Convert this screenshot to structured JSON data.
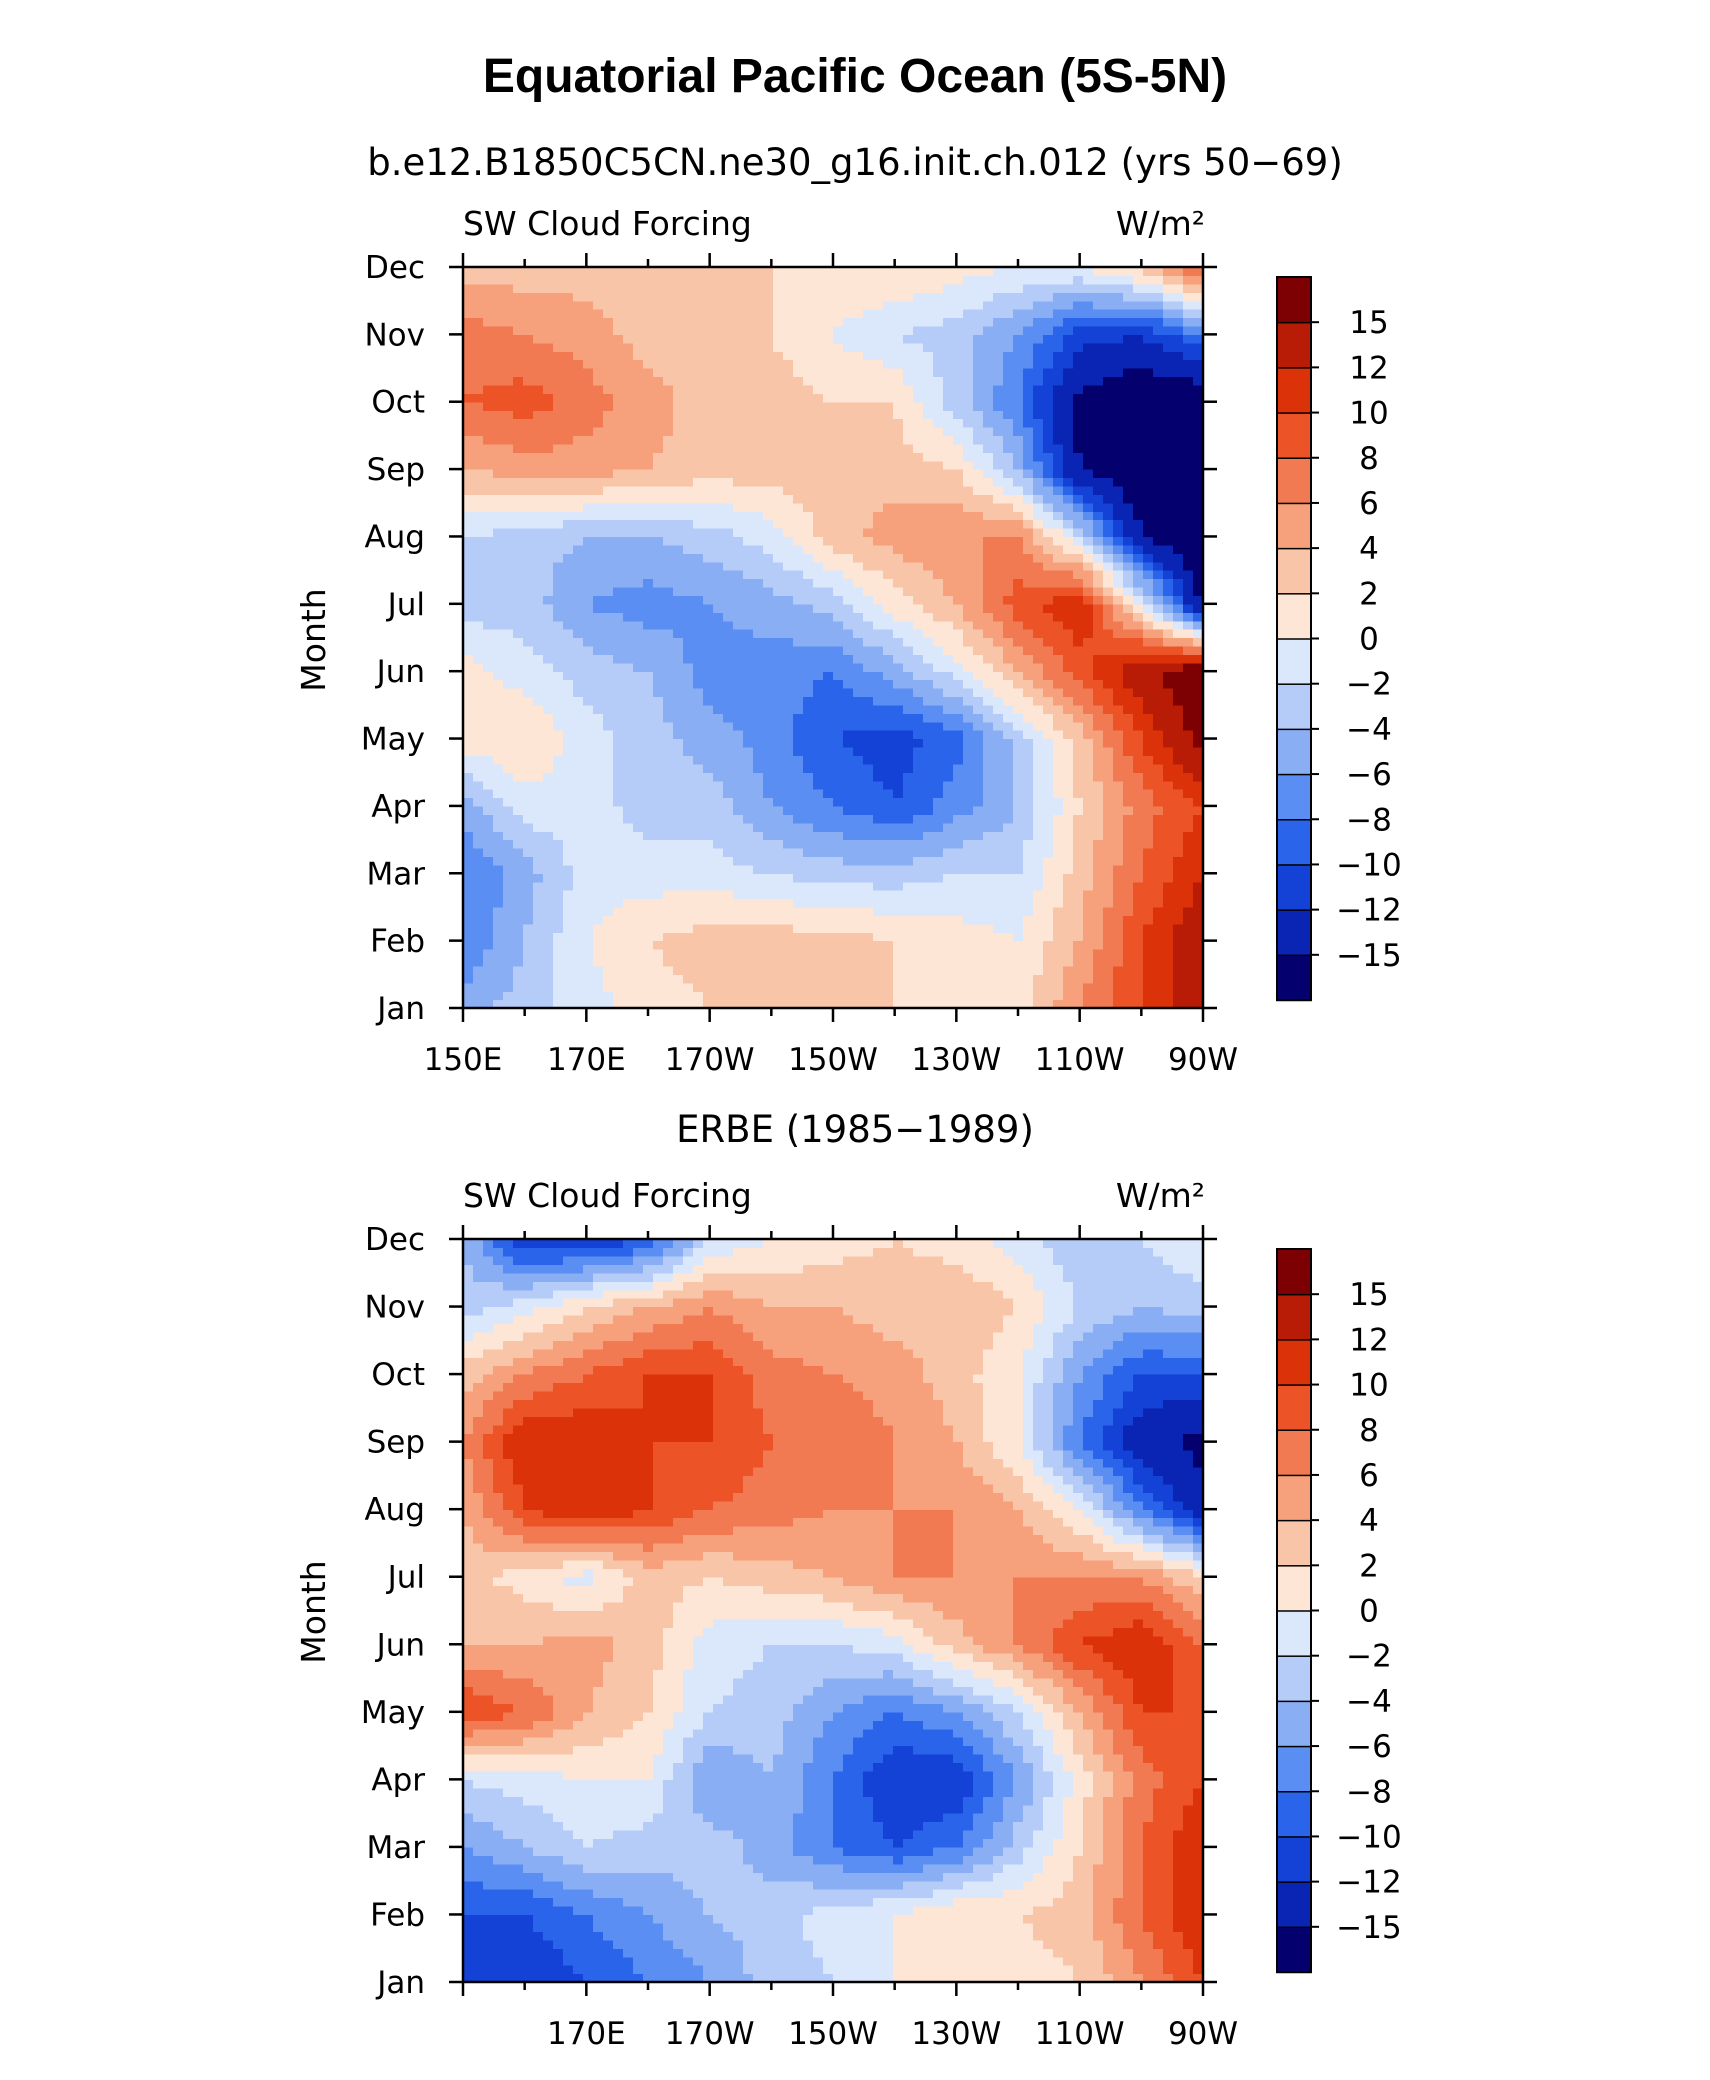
{
  "title": "Equatorial Pacific Ocean (5S-5N)",
  "colors": {
    "scale": [
      "#04006e",
      "#0a24b4",
      "#1441d6",
      "#2a64ea",
      "#5a8ef2",
      "#8aaef4",
      "#b5ccf8",
      "#dbe7fb",
      "#fde6d6",
      "#f9c5a8",
      "#f6a07c",
      "#f27a52",
      "#ec5327",
      "#dc3209",
      "#b81c06",
      "#7d0002"
    ]
  },
  "chart_data": [
    {
      "type": "heatmap",
      "subtitle": "b.e12.B1850C5CN.ne30_g16.init.ch.012 (yrs 50−69)",
      "left_label": "SW Cloud Forcing",
      "right_label": "W/m²",
      "ylabel": "Month",
      "xlabel": "",
      "x_ticks": [
        "150E",
        "170E",
        "170W",
        "150W",
        "130W",
        "110W",
        "90W"
      ],
      "y_ticks": [
        "Jan",
        "Feb",
        "Mar",
        "Apr",
        "May",
        "Jun",
        "Jul",
        "Aug",
        "Sep",
        "Oct",
        "Nov",
        "Dec"
      ],
      "xlim": [
        150,
        270
      ],
      "colorbar_labels": [
        "15",
        "12",
        "10",
        "8",
        "6",
        "4",
        "2",
        "0",
        "−2",
        "−4",
        "−6",
        "−8",
        "−10",
        "−12",
        "−15"
      ],
      "grid_x": [
        150,
        160,
        170,
        180,
        190,
        200,
        210,
        220,
        230,
        240,
        250,
        260,
        270
      ],
      "values": [
        [
          -5,
          -3,
          -1,
          1,
          2,
          2,
          2,
          2,
          1,
          1,
          6,
          10,
          14
        ],
        [
          -8,
          -4,
          0,
          2,
          3,
          3,
          3,
          2,
          1,
          0,
          4,
          10,
          14
        ],
        [
          -8,
          -5,
          -1,
          -1,
          -1,
          -2,
          -3,
          -3,
          -2,
          -2,
          3,
          8,
          12
        ],
        [
          -5,
          -1,
          -1,
          -3,
          -3,
          -6,
          -8,
          -10,
          -7,
          -4,
          2,
          7,
          10
        ],
        [
          1,
          2,
          -1,
          -3,
          -5,
          -7,
          -10,
          -11,
          -9,
          -3,
          3,
          10,
          16
        ],
        [
          1,
          -1,
          -3,
          -4,
          -7,
          -7,
          -8,
          -5,
          -1,
          4,
          9,
          14,
          18
        ],
        [
          -3,
          -3,
          -6,
          -7,
          -6,
          -5,
          -3,
          1,
          4,
          9,
          12,
          0,
          -16
        ],
        [
          -2,
          -3,
          -4,
          -4,
          -3,
          -1,
          3,
          5,
          6,
          6,
          -2,
          -15,
          -18
        ],
        [
          4,
          5,
          5,
          4,
          3,
          3,
          3,
          3,
          2,
          -4,
          -15,
          -18,
          -18
        ],
        [
          8,
          9,
          7,
          5,
          3,
          3,
          2,
          2,
          -3,
          -8,
          -16,
          -18,
          -18
        ],
        [
          7,
          6,
          5,
          3,
          2,
          2,
          0,
          -2,
          -3,
          -6,
          -11,
          -12,
          -8
        ],
        [
          3,
          3,
          3,
          3,
          3,
          2,
          2,
          2,
          1,
          0,
          0,
          3,
          9
        ]
      ]
    },
    {
      "type": "heatmap",
      "subtitle": "ERBE (1985−1989)",
      "left_label": "SW Cloud Forcing",
      "right_label": "W/m²",
      "ylabel": "Month",
      "xlabel": "",
      "x_ticks": [
        "170E",
        "170W",
        "150W",
        "130W",
        "110W",
        "90W"
      ],
      "y_ticks": [
        "Jan",
        "Feb",
        "Mar",
        "Apr",
        "May",
        "Jun",
        "Jul",
        "Aug",
        "Sep",
        "Oct",
        "Nov",
        "Dec"
      ],
      "xlim": [
        150,
        270
      ],
      "colorbar_labels": [
        "15",
        "12",
        "10",
        "8",
        "6",
        "4",
        "2",
        "0",
        "−2",
        "−4",
        "−6",
        "−8",
        "−10",
        "−12",
        "−15"
      ],
      "grid_x": [
        150,
        160,
        170,
        180,
        190,
        200,
        210,
        220,
        230,
        240,
        250,
        260,
        270
      ],
      "values": [
        [
          -10,
          -12,
          -10,
          -8,
          -6,
          -3,
          -2,
          0,
          1,
          1,
          2,
          6,
          10
        ],
        [
          -10,
          -10,
          -8,
          -6,
          -4,
          -3,
          -1,
          0,
          2,
          2,
          3,
          8,
          12
        ],
        [
          -6,
          -4,
          -2,
          -3,
          -3,
          -5,
          -8,
          -10,
          -8,
          -3,
          2,
          8,
          12
        ],
        [
          -2,
          -1,
          0,
          0,
          -6,
          -4,
          -8,
          -12,
          -12,
          -6,
          1,
          7,
          10
        ],
        [
          10,
          8,
          4,
          2,
          -2,
          -3,
          -6,
          -8,
          -6,
          -2,
          4,
          10,
          10
        ],
        [
          4,
          4,
          5,
          3,
          -1,
          -2,
          -2,
          -1,
          3,
          6,
          10,
          12,
          8
        ],
        [
          3,
          1,
          -1,
          3,
          2,
          3,
          4,
          6,
          6,
          6,
          6,
          6,
          2
        ],
        [
          4,
          10,
          12,
          10,
          8,
          7,
          6,
          6,
          6,
          4,
          0,
          -8,
          -14
        ],
        [
          6,
          12,
          12,
          10,
          10,
          8,
          8,
          6,
          4,
          0,
          -8,
          -14,
          -16
        ],
        [
          3,
          6,
          8,
          10,
          10,
          7,
          6,
          5,
          3,
          0,
          -6,
          -10,
          -10
        ],
        [
          -3,
          -1,
          2,
          4,
          6,
          4,
          4,
          3,
          4,
          2,
          -2,
          -4,
          -3
        ],
        [
          -4,
          -12,
          -12,
          -10,
          -2,
          0,
          1,
          2,
          1,
          -1,
          -4,
          -2,
          0
        ]
      ]
    }
  ]
}
